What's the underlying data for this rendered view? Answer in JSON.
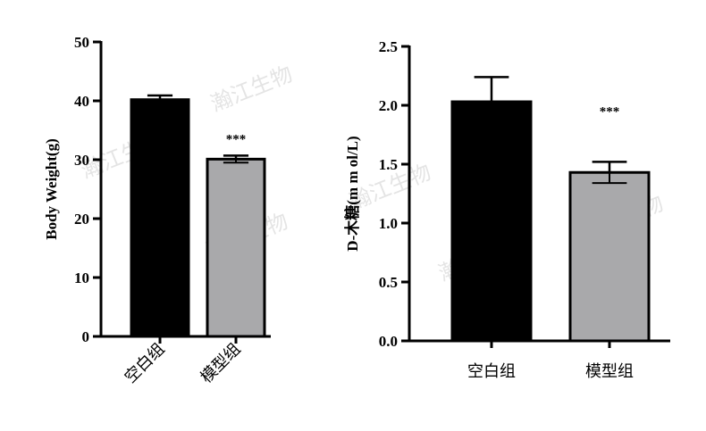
{
  "watermark_text": "瀚江生物",
  "colors": {
    "black_bar": "#000000",
    "gray_bar": "#a9a9ab",
    "axis": "#000000"
  },
  "chart_data": [
    {
      "type": "bar",
      "categories": [
        "空白组",
        "模型组"
      ],
      "values": [
        40.2,
        30.1
      ],
      "errors": [
        0.7,
        0.6
      ],
      "significance": [
        "",
        "***"
      ],
      "ylabel": "Body Weight(g)",
      "ylim": [
        0,
        50
      ],
      "yticks": [
        0,
        10,
        20,
        30,
        40,
        50
      ],
      "grid": false
    },
    {
      "type": "bar",
      "categories": [
        "空白组",
        "模型组"
      ],
      "values": [
        2.03,
        1.43
      ],
      "errors": [
        0.21,
        0.09
      ],
      "significance": [
        "",
        "***"
      ],
      "ylabel": "D-木糖(m m ol/L)",
      "ylim": [
        0,
        2.5
      ],
      "yticks": [
        "0.0",
        "0.5",
        "1.0",
        "1.5",
        "2.0",
        "2.5"
      ],
      "grid": false
    }
  ]
}
